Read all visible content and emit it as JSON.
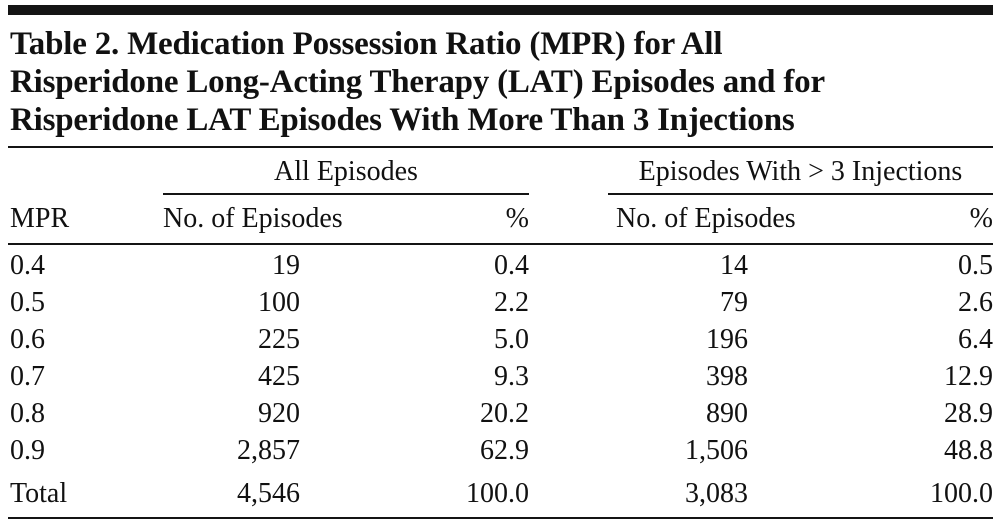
{
  "title": {
    "lines": [
      "Table 2. Medication Possession Ratio (MPR) for All",
      "Risperidone Long-Acting Therapy (LAT) Episodes and for",
      "Risperidone LAT Episodes With More Than 3 Injections"
    ]
  },
  "table": {
    "group_headers": [
      "All Episodes",
      "Episodes With > 3 Injections"
    ],
    "column_headers": [
      "MPR",
      "No. of Episodes",
      "%",
      "No. of Episodes",
      "%"
    ],
    "rows": [
      [
        "0.4",
        "19",
        "0.4",
        "14",
        "0.5"
      ],
      [
        "0.5",
        "100",
        "2.2",
        "79",
        "2.6"
      ],
      [
        "0.6",
        "225",
        "5.0",
        "196",
        "6.4"
      ],
      [
        "0.7",
        "425",
        "9.3",
        "398",
        "12.9"
      ],
      [
        "0.8",
        "920",
        "20.2",
        "890",
        "28.9"
      ],
      [
        "0.9",
        "2,857",
        "62.9",
        "1,506",
        "48.8"
      ]
    ],
    "total_row": [
      "Total",
      "4,546",
      "100.0",
      "3,083",
      "100.0"
    ]
  }
}
